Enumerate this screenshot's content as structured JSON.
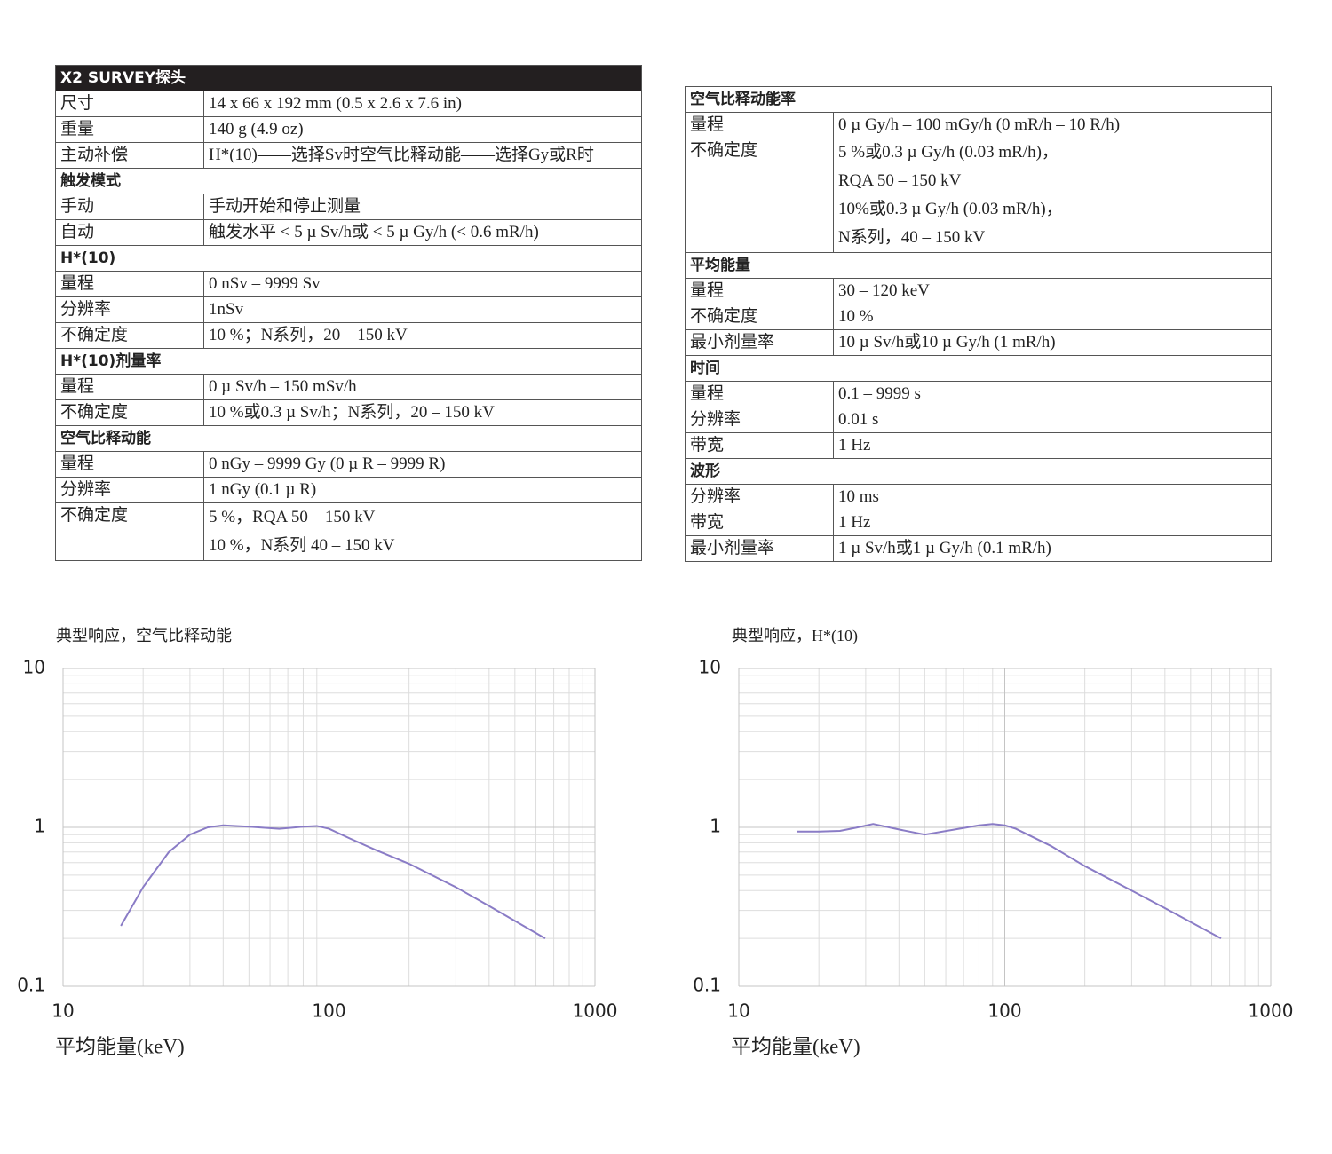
{
  "tables": [
    {
      "title": "X2 SURVEY探头",
      "rows": [
        [
          "尺寸",
          "14 x 66 x 192 mm (0.5 x 2.6 x 7.6 in)"
        ],
        [
          "重量",
          "140 g (4.9 oz)"
        ],
        [
          "主动补偿",
          "H*(10)——选择Sv时空气比释动能——选择Gy或R时"
        ],
        [
          "触发模式"
        ],
        [
          "手动",
          "手动开始和停止测量"
        ],
        [
          "自动",
          "触发水平 < 5 µ Sv/h或 < 5 µ Gy/h (< 0.6 mR/h)"
        ],
        [
          "H*(10)"
        ],
        [
          "量程",
          "0 nSv – 9999 Sv"
        ],
        [
          "分辨率",
          "1nSv"
        ],
        [
          "不确定度",
          "10 %；N系列，20 – 150 kV"
        ],
        [
          "H*(10)剂量率"
        ],
        [
          "量程",
          "0 µ Sv/h – 150 mSv/h"
        ],
        [
          "不确定度",
          "10 %或0.3 µ Sv/h；N系列，20 – 150 kV"
        ],
        [
          "空气比释动能"
        ],
        [
          "量程",
          "0 nGy – 9999 Gy (0 µ R – 9999 R)"
        ],
        [
          "分辨率",
          "1 nGy (0.1 µ R)"
        ],
        [
          "不确定度",
          "5 %，RQA 50 – 150 kV",
          "10 %，N系列 40 – 150 kV"
        ]
      ]
    },
    {
      "rows": [
        [
          "空气比释动能率"
        ],
        [
          "量程",
          "0 µ Gy/h – 100 mGy/h (0 mR/h – 10 R/h)"
        ],
        [
          "不确定度",
          "5 %或0.3 µ Gy/h (0.03 mR/h)，",
          "RQA 50 – 150 kV",
          "10%或0.3 µ Gy/h (0.03 mR/h)，",
          "N系列，40 – 150 kV"
        ],
        [
          "平均能量"
        ],
        [
          "量程",
          "30 – 120 keV"
        ],
        [
          "不确定度",
          "10 %"
        ],
        [
          "最小剂量率",
          "10 µ Sv/h或10 µ Gy/h (1 mR/h)"
        ],
        [
          "时间"
        ],
        [
          "量程",
          "0.1 – 9999 s"
        ],
        [
          "分辨率",
          "0.01 s"
        ],
        [
          "带宽",
          "1 Hz"
        ],
        [
          "波形"
        ],
        [
          "分辨率",
          "10 ms"
        ],
        [
          "带宽",
          "1 Hz"
        ],
        [
          "最小剂量率",
          "1 µ Sv/h或1 µ Gy/h (0.1 mR/h)"
        ]
      ]
    }
  ],
  "chart_data": [
    {
      "type": "line",
      "title": "典型响应，空气比释动能",
      "x_label": "平均能量(keV)",
      "xscale": "log",
      "yscale": "log",
      "grid": true,
      "color": "#8a7cc6",
      "xlim": [
        10,
        1000
      ],
      "xticks": [
        10,
        100,
        1000
      ],
      "ylim": [
        0.1,
        10
      ],
      "yticks": [
        0.1,
        1,
        10
      ],
      "x": [
        16.5,
        20,
        25,
        30,
        35,
        40,
        50,
        65,
        80,
        90,
        100,
        120,
        150,
        200,
        300,
        400,
        650
      ],
      "values": [
        0.24,
        0.42,
        0.7,
        0.9,
        1.0,
        1.03,
        1.01,
        0.98,
        1.01,
        1.02,
        0.98,
        0.85,
        0.72,
        0.59,
        0.42,
        0.32,
        0.2
      ]
    },
    {
      "type": "line",
      "title": "典型响应，H*(10)",
      "x_label": "平均能量(keV)",
      "xscale": "log",
      "yscale": "log",
      "grid": true,
      "color": "#8a7cc6",
      "xlim": [
        10,
        1000
      ],
      "xticks": [
        10,
        100,
        1000
      ],
      "ylim": [
        0.1,
        10
      ],
      "yticks": [
        0.1,
        1,
        10
      ],
      "x": [
        16.5,
        20,
        24,
        28,
        32,
        40,
        50,
        65,
        80,
        90,
        100,
        110,
        150,
        200,
        300,
        400,
        650
      ],
      "values": [
        0.94,
        0.94,
        0.95,
        1.0,
        1.05,
        0.97,
        0.9,
        0.97,
        1.03,
        1.05,
        1.03,
        0.98,
        0.76,
        0.57,
        0.4,
        0.31,
        0.2
      ]
    }
  ]
}
